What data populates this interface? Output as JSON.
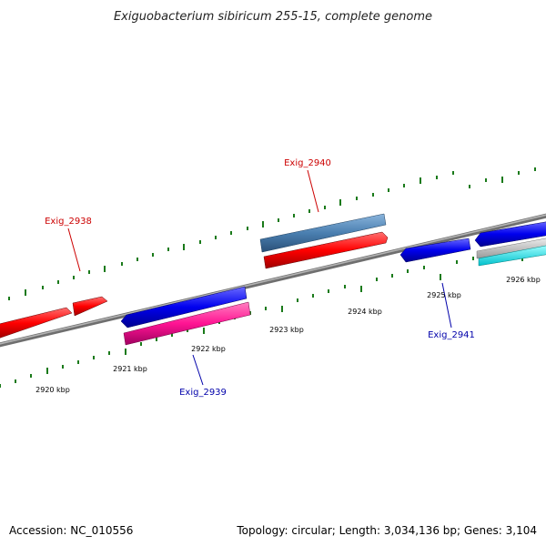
{
  "title": "Exiguobacterium sibiricum 255-15, complete genome",
  "footer": {
    "accession": "Accession: NC_010556",
    "summary": "Topology: circular; Length: 3,034,136 bp; Genes: 3,104"
  },
  "tick_labels": [
    "2920 kbp",
    "2921 kbp",
    "2922 kbp",
    "2923 kbp",
    "2924 kbp",
    "2925 kbp",
    "2926 kbp"
  ],
  "gene_labels": [
    {
      "text": "Exig_2938",
      "strand": "forward"
    },
    {
      "text": "Exig_2940",
      "strand": "forward"
    },
    {
      "text": "Exig_2939",
      "strand": "reverse"
    },
    {
      "text": "Exig_2941",
      "strand": "reverse"
    }
  ],
  "colors": {
    "forward_label": "#cc0000",
    "reverse_label": "#0000aa",
    "backbone": "#888888",
    "tick": "#1a7a1a",
    "forward_cds": "#ff0000",
    "reverse_cds": "#0000ee",
    "pink_feature": "#ff1493",
    "steelblue_feature": "#4a7fb0",
    "grey_feature": "#bbbbbb",
    "cyan_feature": "#00e5ee"
  }
}
